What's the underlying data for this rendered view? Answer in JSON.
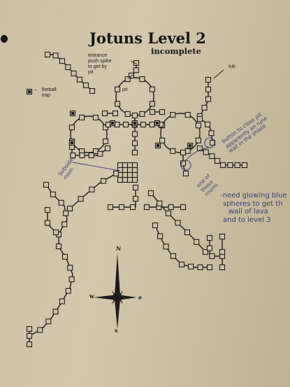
{
  "title": "Jotuns Level 2",
  "subtitle": "incomplete",
  "labels": {
    "entrance": "entrance",
    "push_spike": "push spike",
    "to_get_by": "to get by",
    "pit_top": "pit",
    "pit_room": "pit",
    "tub": "tub",
    "fireball": "fireball",
    "trap": "trap",
    "legend_dash": "–"
  },
  "compass": {
    "north": "N",
    "south": "s",
    "east": "e",
    "west": "w"
  },
  "handwritten": {
    "button_note": [
      "button to close pit",
      "apparently an rune",
      "wall in the shield"
    ],
    "subsided_room": [
      "Subsided",
      "room"
    ],
    "one_of_these": [
      "one of",
      "these",
      "rooms"
    ],
    "lava_note": [
      "-need glowing blue",
      "spheres to get th",
      "wall of lava",
      "and to level 3"
    ]
  },
  "colors": {
    "ink": "#1e1c1a",
    "pen": "#3a4370",
    "paper": "#cdbfa3"
  }
}
